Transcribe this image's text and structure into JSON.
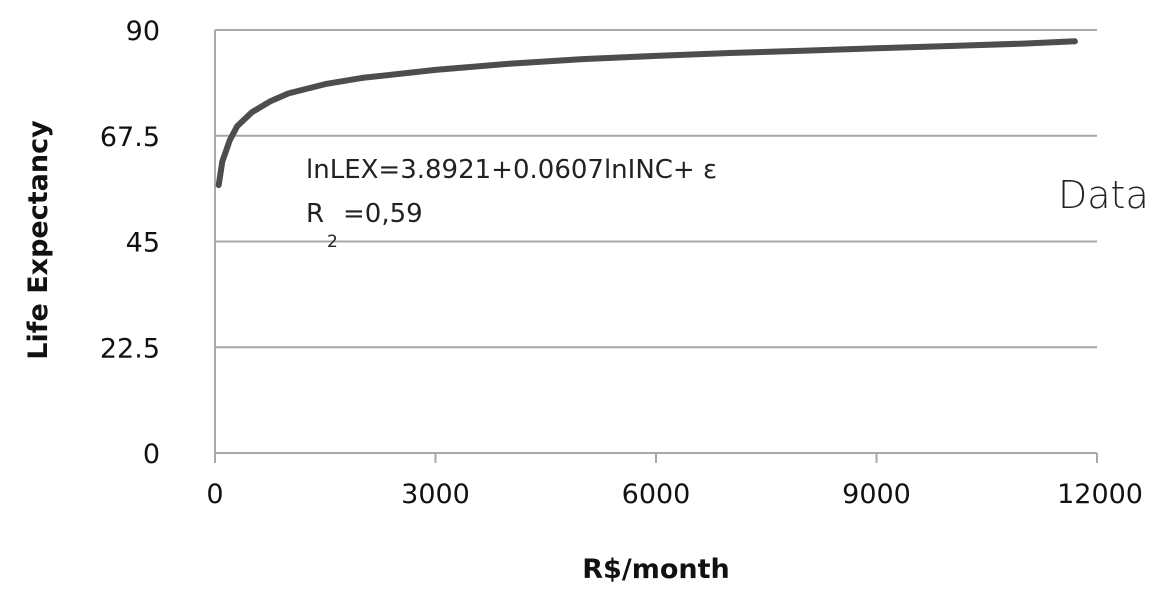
{
  "chart_data": {
    "type": "line",
    "title": "",
    "xlabel": "R$/month",
    "ylabel": "Life Expectancy",
    "xlim": [
      0,
      12000
    ],
    "ylim": [
      0,
      90
    ],
    "x_ticks": [
      "0",
      "3000",
      "6000",
      "9000",
      "12000"
    ],
    "y_ticks": [
      "0",
      "22.5",
      "45",
      "67.5",
      "90"
    ],
    "grid": "horizontal",
    "legend": "none",
    "series": [
      {
        "color": "#4d4d4d",
        "x": [
          50,
          100,
          200,
          300,
          500,
          750,
          1000,
          1500,
          2000,
          3000,
          4000,
          5000,
          6000,
          7000,
          8000,
          9000,
          10000,
          11000,
          11700
        ],
        "y": [
          57,
          62,
          66.5,
          69.5,
          72.5,
          74.8,
          76.5,
          78.5,
          79.8,
          81.5,
          82.8,
          83.8,
          84.5,
          85.1,
          85.6,
          86.1,
          86.6,
          87.1,
          87.6
        ]
      }
    ],
    "annotations": {
      "equation": "lnLEX=3.8921+0.0607lnINC+ ε",
      "r2_prefix": "R",
      "r2_subscript": "2",
      "r2_value": "=0,59",
      "side_text": "Data"
    },
    "colors": {
      "line": "#4d4d4d",
      "grid": "#a8a8a8",
      "axis": "#a8a8a8"
    }
  }
}
